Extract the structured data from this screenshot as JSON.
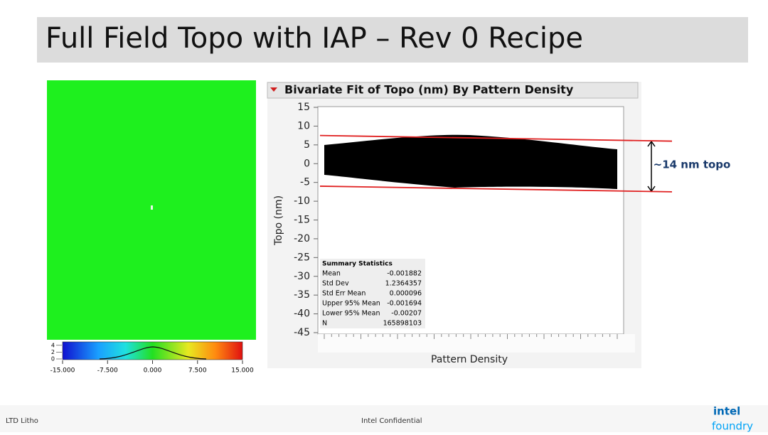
{
  "header": {
    "title": "Full Field Topo with IAP – Rev 0 Recipe"
  },
  "colorbar": {
    "xlim": [
      -15,
      15
    ],
    "xticks": [
      {
        "value": -15,
        "label": "-15.000"
      },
      {
        "value": -7.5,
        "label": "-7.500"
      },
      {
        "value": 0,
        "label": "0.000"
      },
      {
        "value": 7.5,
        "label": "7.500"
      },
      {
        "value": 15,
        "label": "15.000"
      }
    ],
    "ylim": [
      0,
      5
    ],
    "yticks": [
      4,
      2,
      0
    ]
  },
  "chart_data": {
    "type": "scatter",
    "title": "Bivariate Fit of Topo (nm) By Pattern Density",
    "x_label": "Pattern Density",
    "y_label": "Topo (nm)",
    "ylim": [
      -45,
      15
    ],
    "yticks": [
      15,
      10,
      5,
      0,
      -5,
      -10,
      -15,
      -20,
      -25,
      -30,
      -35,
      -40,
      -45
    ],
    "fit_lines": [
      {
        "color": "#e02020",
        "values": [
          7.5,
          6
        ]
      },
      {
        "color": "#e02020",
        "values": [
          -6,
          -7.5
        ]
      }
    ],
    "annotation": "~14 nm topo"
  },
  "summary": {
    "title": "Summary Statistics",
    "rows": [
      [
        "Mean",
        "-0.001882"
      ],
      [
        "Std Dev",
        "1.2364357"
      ],
      [
        "Std Err Mean",
        "0.000096"
      ],
      [
        "Upper 95% Mean",
        "-0.001694"
      ],
      [
        "Lower 95% Mean",
        "-0.00207"
      ],
      [
        "N",
        "165898103"
      ]
    ]
  },
  "footer": {
    "left": "LTD Litho",
    "center": "Intel Confidential",
    "logo": [
      "intel",
      "foundry"
    ]
  }
}
